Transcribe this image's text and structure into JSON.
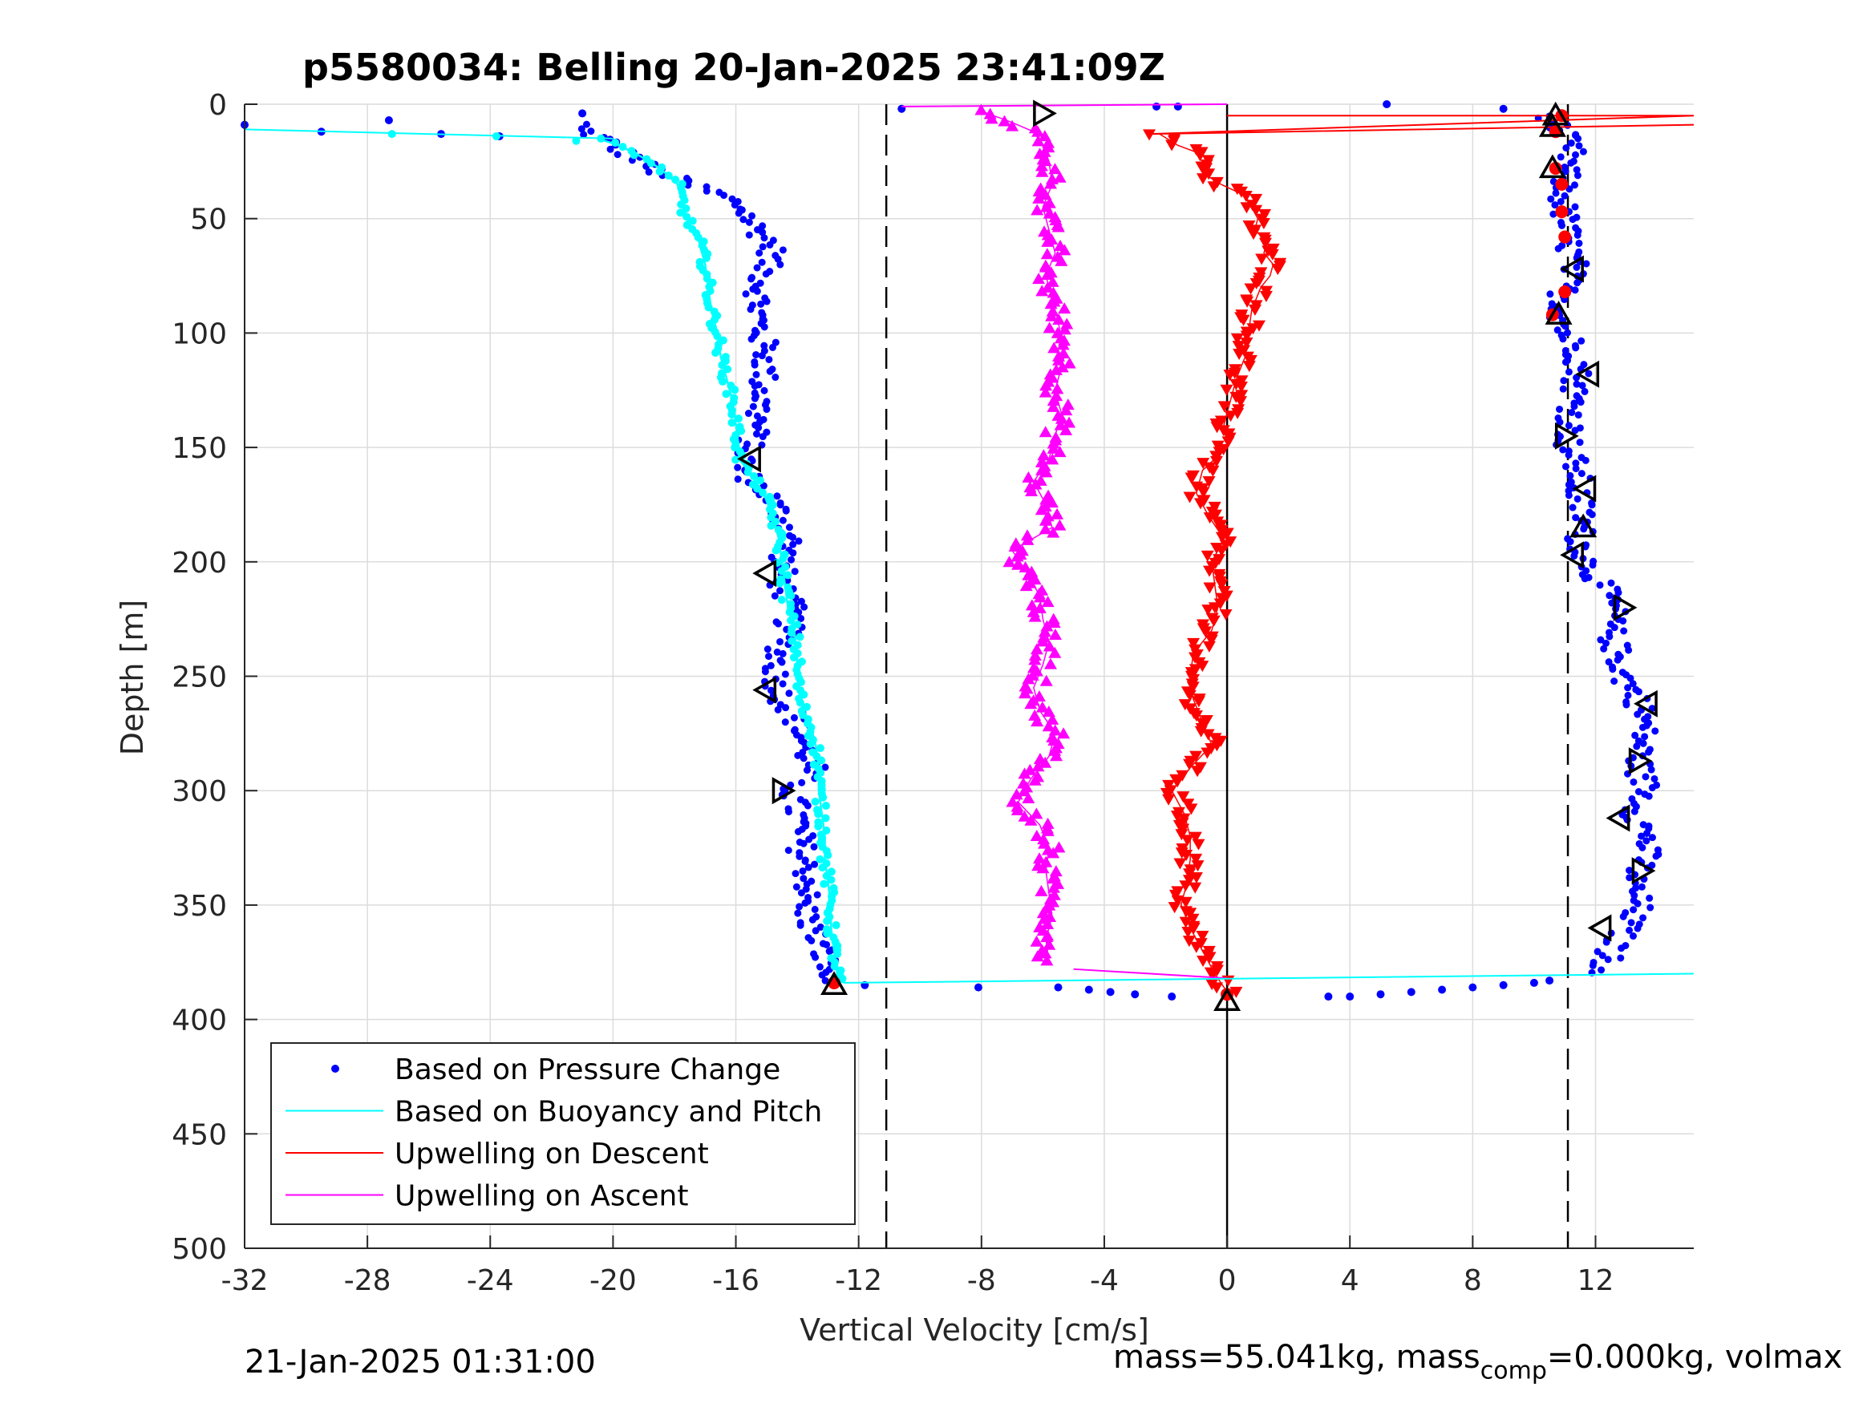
{
  "chart_data": {
    "type": "scatter",
    "title": "p5580034: Belling 20-Jan-2025 23:41:09Z",
    "xlabel": "Vertical Velocity [cm/s]",
    "ylabel": "Depth [m]",
    "xlim": [
      -32,
      15.2
    ],
    "ylim": [
      0,
      500
    ],
    "y_reversed": true,
    "grid": true,
    "x_ticks": [
      -32,
      -28,
      -24,
      -20,
      -16,
      -12,
      -8,
      -4,
      0,
      4,
      8,
      12
    ],
    "x_tick_labels": [
      "-32",
      "-28",
      "-24",
      "-20",
      "-16",
      "-12",
      "-8",
      "-4",
      "0",
      "4",
      "8",
      "12"
    ],
    "y_ticks": [
      0,
      50,
      100,
      150,
      200,
      250,
      300,
      350,
      400,
      450,
      500
    ],
    "y_tick_labels": [
      "0",
      "50",
      "100",
      "150",
      "200",
      "250",
      "300",
      "350",
      "400",
      "450",
      "500"
    ],
    "reference_lines": [
      {
        "x": -11.1,
        "style": "dashed",
        "color": "#000000"
      },
      {
        "x": 0,
        "style": "solid",
        "color": "#000000"
      },
      {
        "x": 11.1,
        "style": "dashed",
        "color": "#000000"
      }
    ],
    "legend_position": "bottom-left",
    "colors": {
      "pressure": "#0000ff",
      "buoyancy": "#00ffff",
      "descent": "#ff0000",
      "ascent": "#ff00ff",
      "marker_outline": "#000000"
    },
    "series": [
      {
        "name": "Based on Pressure Change",
        "style": "dots",
        "dive": {
          "depth": [
            9,
            10,
            12,
            14,
            18,
            22,
            26,
            30,
            35,
            40,
            45,
            50,
            55,
            60,
            65,
            70,
            80,
            90,
            100,
            110,
            120,
            130,
            140,
            150,
            160,
            170,
            180,
            190,
            200,
            210,
            220,
            230,
            240,
            250,
            260,
            270,
            280,
            290,
            300,
            310,
            320,
            330,
            340,
            350,
            360,
            370,
            380,
            385
          ],
          "velocity": [
            -21,
            -21.2,
            -20.8,
            -20.5,
            -20,
            -19.5,
            -19,
            -18.5,
            -17.5,
            -16.5,
            -15.8,
            -15.6,
            -15.3,
            -14.9,
            -14.8,
            -15,
            -15.2,
            -15.3,
            -15.2,
            -15,
            -15.1,
            -15.2,
            -15.3,
            -15.6,
            -15.8,
            -15,
            -14.5,
            -14.2,
            -14.5,
            -14.5,
            -14.2,
            -14.3,
            -14.6,
            -14.7,
            -14.5,
            -14,
            -13.8,
            -13.5,
            -14.2,
            -14,
            -13.9,
            -13.8,
            -13.6,
            -13.8,
            -13.5,
            -13.2,
            -13,
            -12.9
          ]
        },
        "climb": {
          "depth": [
            380,
            370,
            360,
            350,
            340,
            330,
            320,
            310,
            300,
            290,
            280,
            270,
            260,
            250,
            240,
            230,
            220,
            210,
            200,
            190,
            180,
            170,
            160,
            150,
            140,
            130,
            120,
            110,
            100,
            90,
            80,
            70,
            60,
            50,
            40,
            30,
            20,
            10,
            5
          ],
          "velocity": [
            12.2,
            12.5,
            13,
            13.4,
            13.2,
            13.6,
            13.7,
            13.3,
            13.7,
            13.4,
            13.5,
            13.6,
            13.4,
            12.9,
            12.7,
            12.5,
            12.6,
            12.2,
            11.7,
            11.5,
            11.6,
            11.4,
            11.4,
            11.1,
            11.2,
            11.3,
            11.4,
            11.5,
            11,
            10.9,
            11,
            11.3,
            11.1,
            11,
            10.9,
            11,
            11.2,
            10.8,
            10.5
          ]
        },
        "surface_points": [
          {
            "depth": 9,
            "velocity": -32
          },
          {
            "depth": 12,
            "velocity": -29.5
          },
          {
            "depth": 7,
            "velocity": -27.3
          },
          {
            "depth": 13,
            "velocity": -25.6
          },
          {
            "depth": 14,
            "velocity": -23.7
          },
          {
            "depth": 4,
            "velocity": -21
          },
          {
            "depth": 2,
            "velocity": -10.6
          },
          {
            "depth": 1,
            "velocity": -2.3
          },
          {
            "depth": 1,
            "velocity": -1.6
          },
          {
            "depth": 0,
            "velocity": 5.2
          },
          {
            "depth": 2,
            "velocity": 9
          }
        ],
        "bottom_points": [
          {
            "depth": 385,
            "velocity": -11.8
          },
          {
            "depth": 386,
            "velocity": -8.1
          },
          {
            "depth": 386,
            "velocity": -5.5
          },
          {
            "depth": 387,
            "velocity": -4.5
          },
          {
            "depth": 388,
            "velocity": -3.8
          },
          {
            "depth": 389,
            "velocity": -3
          },
          {
            "depth": 390,
            "velocity": -1.8
          },
          {
            "depth": 390,
            "velocity": 3.3
          },
          {
            "depth": 390,
            "velocity": 4
          },
          {
            "depth": 389,
            "velocity": 5
          },
          {
            "depth": 388,
            "velocity": 6
          },
          {
            "depth": 387,
            "velocity": 7
          },
          {
            "depth": 386,
            "velocity": 8
          },
          {
            "depth": 385,
            "velocity": 9
          },
          {
            "depth": 384,
            "velocity": 10
          },
          {
            "depth": 383,
            "velocity": 10.5
          }
        ]
      },
      {
        "name": "Based on Buoyancy and Pitch",
        "style": "line",
        "surface_line": [
          {
            "depth": 11,
            "velocity": -32
          },
          {
            "depth": 15,
            "velocity": -20
          }
        ],
        "bottom_line": [
          {
            "depth": 384,
            "velocity": -12.5
          },
          {
            "depth": 380,
            "velocity": 15.2
          }
        ],
        "depth": [
          15,
          18,
          22,
          26,
          30,
          35,
          40,
          45,
          50,
          60,
          70,
          80,
          90,
          100,
          110,
          120,
          130,
          140,
          150,
          155,
          160,
          170,
          180,
          190,
          200,
          210,
          220,
          230,
          240,
          250,
          260,
          265,
          270,
          280,
          290,
          300,
          310,
          320,
          330,
          340,
          350,
          360,
          370,
          380,
          384
        ],
        "velocity": [
          -20.5,
          -19.8,
          -19.2,
          -18.7,
          -18.3,
          -17.9,
          -17.8,
          -17.7,
          -17.6,
          -17.2,
          -17,
          -16.9,
          -16.8,
          -16.6,
          -16.5,
          -16.3,
          -16.1,
          -16,
          -15.9,
          -15.9,
          -15.6,
          -15.1,
          -14.8,
          -14.6,
          -14.5,
          -14.4,
          -14.3,
          -14.1,
          -14,
          -14,
          -13.9,
          -13.8,
          -13.6,
          -13.4,
          -13.3,
          -13.3,
          -13.2,
          -13.1,
          -13.1,
          -13,
          -12.9,
          -12.9,
          -12.8,
          -12.7,
          -12.5
        ]
      },
      {
        "name": "Upwelling on Descent",
        "style": "down-triangles",
        "surface_line": [
          {
            "depth": 5,
            "velocity": 0
          },
          {
            "depth": 5,
            "velocity": 15.2
          },
          {
            "depth": 13,
            "velocity": -2.5
          },
          {
            "depth": 9,
            "velocity": 15.2
          }
        ],
        "depth": [
          13,
          18,
          22,
          26,
          30,
          35,
          40,
          45,
          50,
          55,
          60,
          65,
          70,
          75,
          80,
          90,
          100,
          110,
          120,
          130,
          140,
          150,
          160,
          170,
          180,
          190,
          200,
          210,
          220,
          230,
          240,
          250,
          260,
          270,
          280,
          290,
          300,
          310,
          320,
          330,
          340,
          350,
          360,
          370,
          380,
          388
        ],
        "velocity": [
          -2.2,
          -1.6,
          -0.8,
          -0.5,
          -0.8,
          -0.2,
          0.6,
          0.8,
          1,
          0.9,
          1.3,
          1.2,
          1.5,
          1.4,
          1.1,
          0.8,
          0.7,
          0.6,
          0.3,
          0.1,
          -0.1,
          0,
          -0.8,
          -1,
          -0.6,
          -0.1,
          -0.5,
          -0.4,
          -0.3,
          -0.5,
          -1.1,
          -1.2,
          -1.1,
          -0.8,
          -0.5,
          -1.2,
          -1.8,
          -1.4,
          -1.2,
          -1.2,
          -1.3,
          -1.5,
          -1.2,
          -0.8,
          -0.4,
          0
        ]
      },
      {
        "name": "Upwelling on Ascent",
        "style": "up-triangles",
        "surface_line": [
          {
            "depth": 1,
            "velocity": -10.6
          },
          {
            "depth": 0,
            "velocity": 0
          }
        ],
        "bottom_line": [
          {
            "depth": 378,
            "velocity": -5
          },
          {
            "depth": 382,
            "velocity": 0
          }
        ],
        "depth": [
          3,
          8,
          12,
          18,
          25,
          35,
          45,
          55,
          65,
          75,
          85,
          95,
          110,
          125,
          135,
          145,
          155,
          165,
          175,
          185,
          195,
          205,
          215,
          225,
          235,
          245,
          255,
          265,
          275,
          285,
          295,
          305,
          315,
          325,
          335,
          345,
          355,
          365,
          375
        ],
        "velocity": [
          -8,
          -7,
          -6.3,
          -6,
          -5.8,
          -5.7,
          -6,
          -5.8,
          -5.6,
          -5.9,
          -5.7,
          -5.5,
          -5.3,
          -5.6,
          -5.4,
          -5.6,
          -5.8,
          -6.3,
          -5.9,
          -5.7,
          -7,
          -6.5,
          -6.1,
          -6,
          -5.8,
          -6,
          -6.3,
          -6.1,
          -5.6,
          -5.8,
          -6.4,
          -6.8,
          -6.1,
          -5.8,
          -5.9,
          -5.8,
          -5.7,
          -5.9,
          -5.8
        ]
      }
    ],
    "open_triangle_markers": [
      {
        "depth": 4,
        "velocity": -6,
        "dir": "right"
      },
      {
        "depth": 155,
        "velocity": -15.5,
        "dir": "left"
      },
      {
        "depth": 205,
        "velocity": -15,
        "dir": "left"
      },
      {
        "depth": 256,
        "velocity": -15,
        "dir": "left"
      },
      {
        "depth": 300,
        "velocity": -14.5,
        "dir": "right"
      },
      {
        "depth": 385,
        "velocity": -12.8,
        "dir": "up"
      },
      {
        "depth": 392,
        "velocity": 0,
        "dir": "up"
      },
      {
        "depth": 5,
        "velocity": 10.7,
        "dir": "up"
      },
      {
        "depth": 10,
        "velocity": 10.6,
        "dir": "up"
      },
      {
        "depth": 28,
        "velocity": 10.6,
        "dir": "up"
      },
      {
        "depth": 72,
        "velocity": 11.3,
        "dir": "left"
      },
      {
        "depth": 92,
        "velocity": 10.8,
        "dir": "up"
      },
      {
        "depth": 118,
        "velocity": 11.8,
        "dir": "left"
      },
      {
        "depth": 145,
        "velocity": 11,
        "dir": "right"
      },
      {
        "depth": 168,
        "velocity": 11.7,
        "dir": "left"
      },
      {
        "depth": 185,
        "velocity": 11.6,
        "dir": "up"
      },
      {
        "depth": 197,
        "velocity": 11.3,
        "dir": "left"
      },
      {
        "depth": 220,
        "velocity": 12.9,
        "dir": "right"
      },
      {
        "depth": 262,
        "velocity": 13.7,
        "dir": "left"
      },
      {
        "depth": 287,
        "velocity": 13.4,
        "dir": "right"
      },
      {
        "depth": 312,
        "velocity": 12.8,
        "dir": "left"
      },
      {
        "depth": 335,
        "velocity": 13.5,
        "dir": "right"
      },
      {
        "depth": 360,
        "velocity": 12.2,
        "dir": "left"
      }
    ],
    "red_dot_markers": [
      {
        "depth": 5,
        "velocity": 10.9
      },
      {
        "depth": 12,
        "velocity": 10.7
      },
      {
        "depth": 28,
        "velocity": 10.7
      },
      {
        "depth": 35,
        "velocity": 10.9
      },
      {
        "depth": 47,
        "velocity": 10.9
      },
      {
        "depth": 58,
        "velocity": 11
      },
      {
        "depth": 82,
        "velocity": 11
      },
      {
        "depth": 92,
        "velocity": 10.6
      },
      {
        "depth": 384,
        "velocity": -12.8
      },
      {
        "depth": 389,
        "velocity": 0
      }
    ],
    "legend": [
      {
        "label": "Based on Pressure Change",
        "kind": "dot",
        "color": "#0000ff"
      },
      {
        "label": "Based on Buoyancy and Pitch",
        "kind": "line",
        "color": "#00ffff"
      },
      {
        "label": "Upwelling on Descent",
        "kind": "line",
        "color": "#ff0000"
      },
      {
        "label": "Upwelling on Ascent",
        "kind": "line",
        "color": "#ff00ff"
      }
    ]
  },
  "footer": {
    "timestamp": "21-Jan-2025 01:31:00",
    "mass_prefix": "mass=55.041kg, mass",
    "mass_sub": "comp",
    "mass_suffix": "=0.000kg, volmax"
  }
}
